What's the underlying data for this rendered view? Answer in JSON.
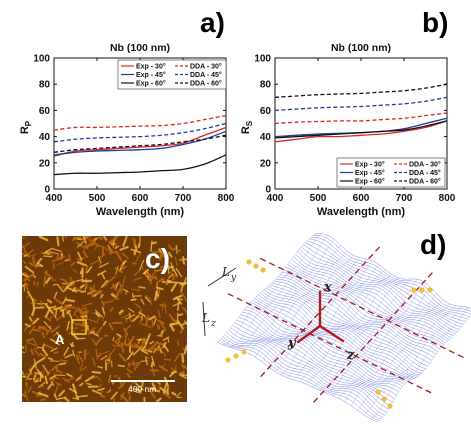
{
  "panel_labels": {
    "a": "a)",
    "b": "b)",
    "c": "c)",
    "d": "d)"
  },
  "chart_data": [
    {
      "type": "line",
      "panel": "a)",
      "title": "Nb (100 nm)",
      "xlabel": "Wavelength (nm)",
      "ylabel": "R",
      "ylabel_sub": "P",
      "xlim": [
        400,
        800
      ],
      "ylim": [
        0,
        100
      ],
      "xticks": [
        "400",
        "500",
        "600",
        "700",
        "800"
      ],
      "yticks": [
        "0",
        "20",
        "40",
        "60",
        "80",
        "100"
      ],
      "legend": "top-center",
      "x": [
        400,
        450,
        500,
        550,
        600,
        650,
        700,
        750,
        800
      ],
      "series": [
        {
          "name": "Exp - 30°",
          "color": "#d62728",
          "style": "solid",
          "values": [
            25,
            29,
            30,
            31,
            32,
            33,
            35,
            41,
            47
          ]
        },
        {
          "name": "Exp - 45°",
          "color": "#1f3b99",
          "style": "solid",
          "values": [
            26,
            28,
            29,
            29.5,
            30,
            31,
            34,
            38,
            44
          ]
        },
        {
          "name": "Exp - 60°",
          "color": "#111111",
          "style": "solid",
          "values": [
            11,
            12,
            12,
            12.5,
            13,
            14,
            15,
            19,
            26
          ]
        },
        {
          "name": "DDA - 30°",
          "color": "#d62728",
          "style": "dashed",
          "values": [
            45,
            47,
            47,
            47.5,
            48,
            48.5,
            50,
            53,
            56
          ]
        },
        {
          "name": "DDA - 45°",
          "color": "#1f3b99",
          "style": "dashed",
          "values": [
            36,
            38,
            39,
            39.5,
            40,
            41,
            43,
            46,
            50
          ]
        },
        {
          "name": "DDA - 60°",
          "color": "#111111",
          "style": "dashed",
          "values": [
            28,
            30,
            31,
            32,
            33,
            34,
            36,
            38,
            41
          ]
        }
      ]
    },
    {
      "type": "line",
      "panel": "b)",
      "title": "Nb (100 nm)",
      "xlabel": "Wavelength (nm)",
      "ylabel": "R",
      "ylabel_sub": "S",
      "xlim": [
        400,
        800
      ],
      "ylim": [
        0,
        100
      ],
      "xticks": [
        "400",
        "500",
        "600",
        "700",
        "800"
      ],
      "yticks": [
        "0",
        "20",
        "40",
        "60",
        "80",
        "100"
      ],
      "legend": "bottom-right",
      "x": [
        400,
        450,
        500,
        550,
        600,
        650,
        700,
        750,
        800
      ],
      "series": [
        {
          "name": "Exp - 30°",
          "color": "#d62728",
          "style": "solid",
          "values": [
            36,
            38,
            40,
            40,
            41,
            42,
            44,
            47,
            52
          ]
        },
        {
          "name": "Exp - 45°",
          "color": "#1f3b99",
          "style": "solid",
          "values": [
            40,
            41,
            42,
            42.5,
            43,
            44,
            46,
            50,
            54
          ]
        },
        {
          "name": "Exp - 60°",
          "color": "#111111",
          "style": "solid",
          "values": [
            39,
            40,
            41,
            42,
            43,
            44,
            45,
            48,
            52
          ]
        },
        {
          "name": "DDA - 30°",
          "color": "#d62728",
          "style": "dashed",
          "values": [
            50,
            51,
            51.5,
            52,
            52,
            53,
            54,
            56,
            58
          ]
        },
        {
          "name": "DDA - 45°",
          "color": "#1f3b99",
          "style": "dashed",
          "values": [
            60,
            61,
            62,
            62.5,
            63,
            64,
            65,
            67,
            70
          ]
        },
        {
          "name": "DDA - 60°",
          "color": "#111111",
          "style": "dashed",
          "values": [
            70,
            71,
            72,
            72.5,
            73,
            74,
            75,
            77,
            80
          ]
        }
      ]
    }
  ],
  "afm_image": {
    "marker_label": "A",
    "scale_bar_label": "400 nm",
    "colors": {
      "base": "#6b3a08",
      "mid": "#b8650f",
      "high": "#f0b33a",
      "marker": "#f2d21b"
    }
  },
  "surface_model": {
    "dimension_labels": [
      "L",
      "L"
    ],
    "dimension_subs": [
      "y",
      "z"
    ],
    "axis_labels": [
      "x",
      "y",
      "z"
    ],
    "colors": {
      "mesh": "#4a55d8",
      "grid_lines": "#9e1b1b",
      "axes": "#b01b1b",
      "dots": "#f2c12e"
    }
  }
}
